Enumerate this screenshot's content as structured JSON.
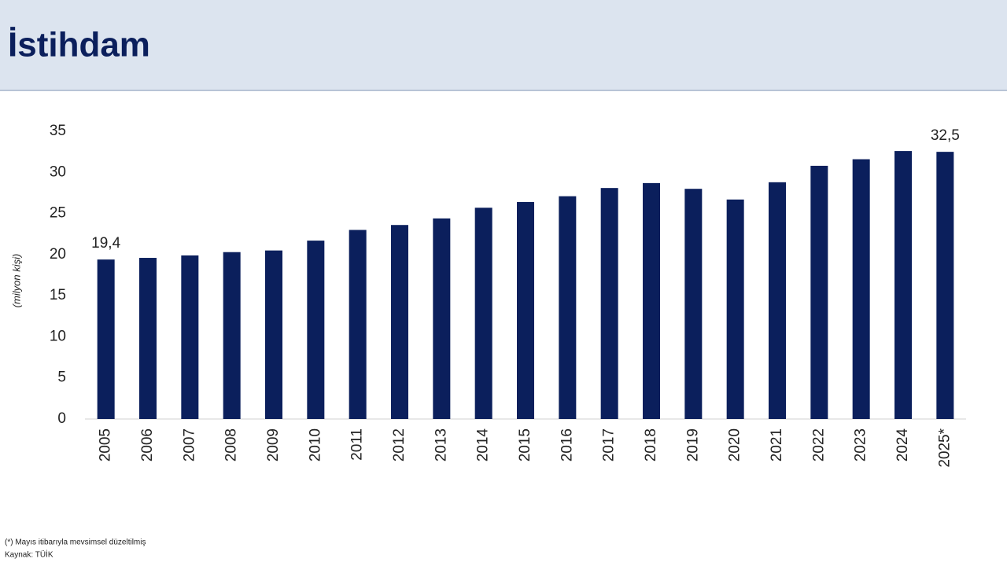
{
  "header": {
    "title": "İstihdam"
  },
  "chart_data": {
    "type": "bar",
    "y_label": "(milyon kişi)",
    "categories": [
      "2005",
      "2006",
      "2007",
      "2008",
      "2009",
      "2010",
      "2011",
      "2012",
      "2013",
      "2014",
      "2015",
      "2016",
      "2017",
      "2018",
      "2019",
      "2020",
      "2021",
      "2022",
      "2023",
      "2024",
      "2025*"
    ],
    "values": [
      19.4,
      19.6,
      19.9,
      20.3,
      20.5,
      21.7,
      23.0,
      23.6,
      24.4,
      25.7,
      26.4,
      27.1,
      28.1,
      28.7,
      28.0,
      26.7,
      28.8,
      30.8,
      31.6,
      32.6,
      32.5
    ],
    "value_labels": [
      "19,4",
      null,
      null,
      null,
      null,
      null,
      null,
      null,
      null,
      null,
      null,
      null,
      null,
      null,
      null,
      null,
      null,
      null,
      null,
      null,
      "32,5"
    ],
    "color": "#0b1f5c",
    "ylim": [
      0,
      35
    ],
    "yticks": [
      0,
      5,
      10,
      15,
      20,
      25,
      30,
      35
    ],
    "grid": false
  },
  "footer": {
    "note": "(*) Mayıs itibarıyla mevsimsel düzeltilmiş",
    "source": "Kaynak: TÜİK"
  }
}
